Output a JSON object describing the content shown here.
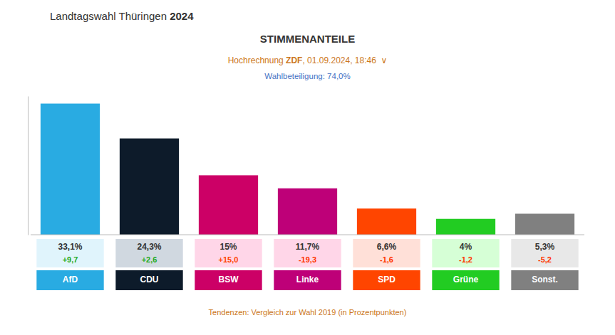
{
  "chart_data": {
    "type": "bar",
    "header": [
      "Landtagswahl Thüringen ",
      "2024"
    ],
    "title": "STIMMENANTEILE",
    "subtitle": [
      "Hochrechnung ",
      "ZDF",
      ", 01.09.2024, 18:46  ∨"
    ],
    "note": "Wahlbeteiligung: 74,0%",
    "footer": "Tendenzen: Vergleich zur Wahl 2019 (in Prozentpunkten)",
    "categories": [
      "AfD",
      "CDU",
      "BSW",
      "Linke",
      "SPD",
      "Grüne",
      "Sonst."
    ],
    "values": [
      33.1,
      24.3,
      15.0,
      11.7,
      6.6,
      4.0,
      5.3
    ],
    "value_labels": [
      "33,1%",
      "24,3%",
      "15%",
      "11,7%",
      "6,6%",
      "4%",
      "5,3%"
    ],
    "changes": [
      "+9,7",
      "+2,6",
      "+15,0",
      "-19,3",
      "-1,6",
      "-1,2",
      "-5,2"
    ],
    "colors": [
      "#29ABE2",
      "#0d1b2a",
      "#CC0066",
      "#BE0078",
      "#FF4500",
      "#22CC22",
      "#808080"
    ],
    "label_bg_colors": [
      "#E0F4FC",
      "#d0d8e0",
      "#FFD6E8",
      "#FFD6E8",
      "#FFE0D8",
      "#D6FFD6",
      "#E8E8E8"
    ],
    "change_colors": [
      "#22AA22",
      "#22AA22",
      "#FF4400",
      "#FF3300",
      "#FF3300",
      "#FF3300",
      "#FF3300"
    ],
    "ylim": [
      0,
      35
    ],
    "data_labels": true,
    "tick_labels": false,
    "grid": false
  }
}
